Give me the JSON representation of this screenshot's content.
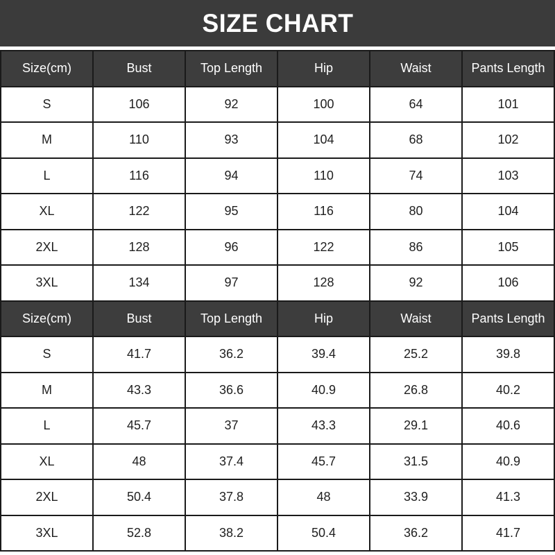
{
  "title": "SIZE CHART",
  "colors": {
    "banner_bg": "#3b3b3b",
    "header_bg": "#3d3d3d",
    "header_text": "#ffffff",
    "row_bg": "#ffffff",
    "border": "#1a1a1a",
    "cell_text": "#1f1f1f"
  },
  "chart_data": {
    "type": "table",
    "title": "SIZE CHART",
    "sections": [
      {
        "unit": "cm",
        "header": [
          "Size(cm)",
          "Bust",
          "Top Length",
          "Hip",
          "Waist",
          "Pants Length"
        ],
        "rows": [
          [
            "S",
            "106",
            "92",
            "100",
            "64",
            "101"
          ],
          [
            "M",
            "110",
            "93",
            "104",
            "68",
            "102"
          ],
          [
            "L",
            "116",
            "94",
            "110",
            "74",
            "103"
          ],
          [
            "XL",
            "122",
            "95",
            "116",
            "80",
            "104"
          ],
          [
            "2XL",
            "128",
            "96",
            "122",
            "86",
            "105"
          ],
          [
            "3XL",
            "134",
            "97",
            "128",
            "92",
            "106"
          ]
        ]
      },
      {
        "unit": "inch",
        "header": [
          "Size(cm)",
          "Bust",
          "Top Length",
          "Hip",
          "Waist",
          "Pants Length"
        ],
        "rows": [
          [
            "S",
            "41.7",
            "36.2",
            "39.4",
            "25.2",
            "39.8"
          ],
          [
            "M",
            "43.3",
            "36.6",
            "40.9",
            "26.8",
            "40.2"
          ],
          [
            "L",
            "45.7",
            "37",
            "43.3",
            "29.1",
            "40.6"
          ],
          [
            "XL",
            "48",
            "37.4",
            "45.7",
            "31.5",
            "40.9"
          ],
          [
            "2XL",
            "50.4",
            "37.8",
            "48",
            "33.9",
            "41.3"
          ],
          [
            "3XL",
            "52.8",
            "38.2",
            "50.4",
            "36.2",
            "41.7"
          ]
        ]
      }
    ]
  }
}
